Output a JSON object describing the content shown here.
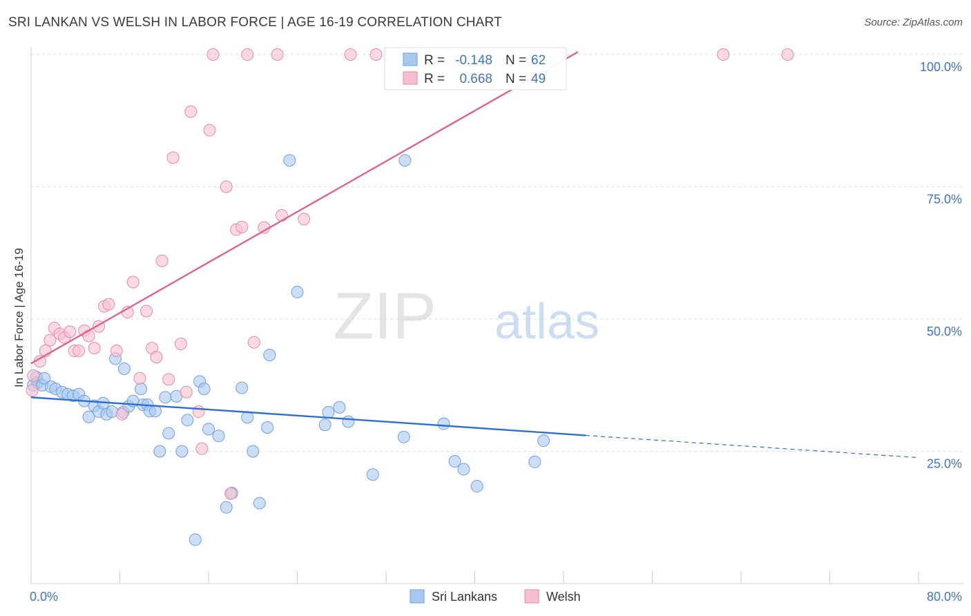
{
  "title": "SRI LANKAN VS WELSH IN LABOR FORCE | AGE 16-19 CORRELATION CHART",
  "source": "Source: ZipAtlas.com",
  "watermark": {
    "zip": "ZIP",
    "atlas": "atlas"
  },
  "colors": {
    "blue_fill": "#a9c8f0",
    "blue_stroke": "#6f9fdc",
    "blue_line": "#2a6fd1",
    "pink_fill": "#f6bfd0",
    "pink_stroke": "#e58aa7",
    "pink_line": "#e0628e",
    "tick_label": "#3b74c9",
    "grid": "#dedede"
  },
  "legend_box": {
    "rows": [
      {
        "r_label": "R =",
        "r_value": "-0.148",
        "n_label": "N =",
        "n_value": "62",
        "color": "blue"
      },
      {
        "r_label": "R =",
        "r_value": "0.668",
        "n_label": "N =",
        "n_value": "49",
        "color": "pink"
      }
    ]
  },
  "chart_data": {
    "type": "scatter",
    "title": "SRI LANKAN VS WELSH IN LABOR FORCE | AGE 16-19 CORRELATION CHART",
    "xlabel": "",
    "ylabel": "In Labor Force | Age 16-19",
    "xlim": [
      0,
      80
    ],
    "ylim": [
      0,
      102
    ],
    "x_tick_labels": [
      {
        "value": 0,
        "label": "0.0%"
      },
      {
        "value": 80,
        "label": "80.0%"
      }
    ],
    "y_tick_labels": [
      {
        "value": 25,
        "label": "25.0%"
      },
      {
        "value": 50,
        "label": "50.0%"
      },
      {
        "value": 75,
        "label": "75.0%"
      },
      {
        "value": 100,
        "label": "100.0%"
      }
    ],
    "grid": true,
    "legend_position": "bottom-center",
    "series": [
      {
        "name": "Sri Lankans",
        "color": "blue",
        "r": -0.148,
        "n": 62,
        "trend": {
          "x0": 0,
          "y0": 35.2,
          "x1": 50,
          "y1": 28.0,
          "dashed_to_x": 80,
          "dashed_to_y": 23.8
        },
        "points": [
          [
            0.2,
            37.5
          ],
          [
            0.5,
            39
          ],
          [
            0.6,
            38
          ],
          [
            1,
            37.5
          ],
          [
            1.2,
            38.8
          ],
          [
            1.8,
            37.2
          ],
          [
            2.2,
            36.8
          ],
          [
            2.8,
            36.2
          ],
          [
            3.3,
            35.8
          ],
          [
            3.8,
            35.5
          ],
          [
            4.3,
            35.8
          ],
          [
            4.8,
            34.5
          ],
          [
            5.2,
            31.5
          ],
          [
            5.7,
            33.6
          ],
          [
            6.1,
            32.5
          ],
          [
            6.5,
            34.1
          ],
          [
            6.8,
            32
          ],
          [
            7.3,
            32.5
          ],
          [
            7.6,
            42.5
          ],
          [
            8.3,
            32.4
          ],
          [
            8.4,
            40.6
          ],
          [
            8.8,
            33.5
          ],
          [
            9.2,
            34.5
          ],
          [
            9.9,
            36.8
          ],
          [
            10.1,
            33.8
          ],
          [
            10.5,
            33.8
          ],
          [
            10.7,
            32.6
          ],
          [
            11.2,
            32.6
          ],
          [
            11.6,
            25
          ],
          [
            12.1,
            35.2
          ],
          [
            12.4,
            28.4
          ],
          [
            13.1,
            35.4
          ],
          [
            13.6,
            25
          ],
          [
            14.1,
            30.9
          ],
          [
            14.8,
            8.3
          ],
          [
            15.2,
            38.2
          ],
          [
            15.6,
            36.8
          ],
          [
            16,
            29.2
          ],
          [
            16.9,
            27.9
          ],
          [
            18.1,
            17.1
          ],
          [
            17.6,
            14.4
          ],
          [
            19,
            37
          ],
          [
            19.5,
            31.4
          ],
          [
            20.0,
            25
          ],
          [
            20.6,
            15.2
          ],
          [
            21.3,
            29.5
          ],
          [
            21.5,
            43.2
          ],
          [
            23.3,
            80
          ],
          [
            24,
            55.1
          ],
          [
            26.5,
            30
          ],
          [
            26.8,
            32.4
          ],
          [
            27.8,
            33.3
          ],
          [
            28.6,
            30.6
          ],
          [
            30.8,
            20.6
          ],
          [
            33.6,
            27.7
          ],
          [
            33.7,
            80
          ],
          [
            37.2,
            30.2
          ],
          [
            38.2,
            23.1
          ],
          [
            39,
            21.6
          ],
          [
            40.2,
            18.4
          ],
          [
            45.4,
            23
          ],
          [
            46.2,
            27
          ]
        ]
      },
      {
        "name": "Welsh",
        "color": "pink",
        "r": 0.668,
        "n": 49,
        "trend": {
          "x0": 0,
          "y0": 41.6,
          "x1": 49.3,
          "y1": 100.5
        },
        "points": [
          [
            0.1,
            36.5
          ],
          [
            0.2,
            39.3
          ],
          [
            0.8,
            42
          ],
          [
            1.3,
            44
          ],
          [
            1.7,
            46
          ],
          [
            2.1,
            48.3
          ],
          [
            2.6,
            47.2
          ],
          [
            3.0,
            46.5
          ],
          [
            3.5,
            47.6
          ],
          [
            3.9,
            44
          ],
          [
            4.3,
            44
          ],
          [
            4.8,
            47.8
          ],
          [
            5.2,
            46.8
          ],
          [
            5.7,
            44.5
          ],
          [
            6.1,
            48.6
          ],
          [
            6.6,
            52.4
          ],
          [
            7.0,
            52.8
          ],
          [
            7.7,
            44
          ],
          [
            8.2,
            32
          ],
          [
            8.7,
            51.3
          ],
          [
            9.2,
            57
          ],
          [
            9.8,
            38.8
          ],
          [
            10.4,
            51.5
          ],
          [
            10.9,
            44.5
          ],
          [
            11.3,
            42.8
          ],
          [
            11.8,
            61
          ],
          [
            12.4,
            38.6
          ],
          [
            12.8,
            80.5
          ],
          [
            13.5,
            45.3
          ],
          [
            14.0,
            36.2
          ],
          [
            14.4,
            89.2
          ],
          [
            15.1,
            32.5
          ],
          [
            15.4,
            25.5
          ],
          [
            16.1,
            85.7
          ],
          [
            16.4,
            100
          ],
          [
            17.6,
            75
          ],
          [
            18.0,
            17
          ],
          [
            18.5,
            66.9
          ],
          [
            19,
            67.4
          ],
          [
            19.5,
            100
          ],
          [
            20.1,
            45.6
          ],
          [
            21.0,
            67.3
          ],
          [
            22.2,
            100
          ],
          [
            22.6,
            69.6
          ],
          [
            24.6,
            68.9
          ],
          [
            28.8,
            100
          ],
          [
            31.1,
            100
          ],
          [
            62.4,
            100
          ],
          [
            68.2,
            100
          ]
        ]
      }
    ]
  },
  "bottom_legend": [
    {
      "label": "Sri Lankans",
      "color": "blue"
    },
    {
      "label": "Welsh",
      "color": "pink"
    }
  ]
}
